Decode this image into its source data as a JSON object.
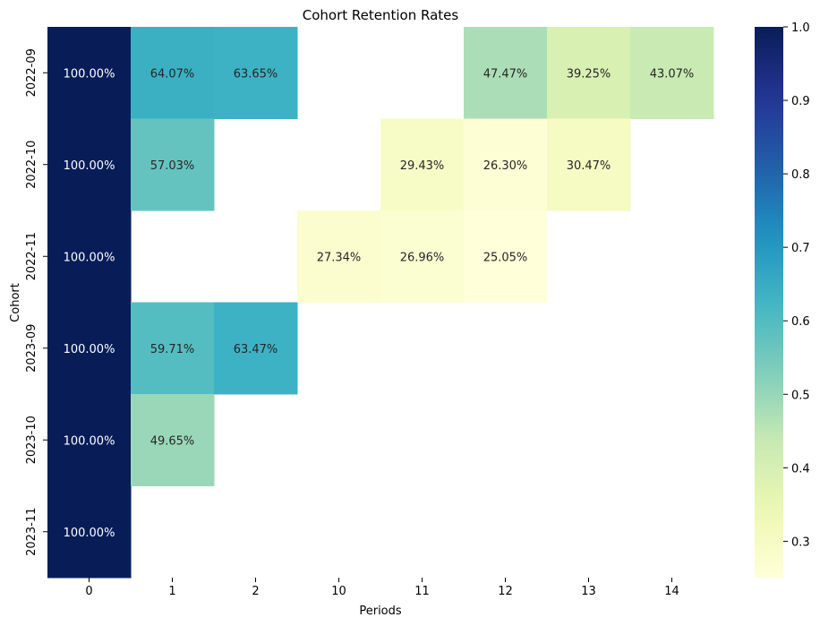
{
  "chart_data": {
    "type": "heatmap",
    "title": "Cohort Retention Rates",
    "xlabel": "Periods",
    "ylabel": "Cohort",
    "x_categories": [
      "0",
      "1",
      "2",
      "10",
      "11",
      "12",
      "13",
      "14"
    ],
    "y_categories": [
      "2022-09",
      "2022-10",
      "2022-11",
      "2023-09",
      "2023-10",
      "2023-11"
    ],
    "values": [
      [
        1.0,
        0.6407,
        0.6365,
        null,
        null,
        0.4747,
        0.3925,
        0.4307
      ],
      [
        1.0,
        0.5703,
        null,
        null,
        0.2943,
        0.263,
        0.3047,
        null
      ],
      [
        1.0,
        null,
        null,
        0.2734,
        0.2696,
        0.2505,
        null,
        null
      ],
      [
        1.0,
        0.5971,
        0.6347,
        null,
        null,
        null,
        null,
        null
      ],
      [
        1.0,
        0.4965,
        null,
        null,
        null,
        null,
        null,
        null
      ],
      [
        1.0,
        null,
        null,
        null,
        null,
        null,
        null,
        null
      ]
    ],
    "cell_labels": [
      [
        "100.00%",
        "64.07%",
        "63.65%",
        "",
        "",
        "47.47%",
        "39.25%",
        "43.07%"
      ],
      [
        "100.00%",
        "57.03%",
        "",
        "",
        "29.43%",
        "26.30%",
        "30.47%",
        ""
      ],
      [
        "100.00%",
        "",
        "",
        "27.34%",
        "26.96%",
        "25.05%",
        "",
        ""
      ],
      [
        "100.00%",
        "59.71%",
        "63.47%",
        "",
        "",
        "",
        "",
        ""
      ],
      [
        "100.00%",
        "49.65%",
        "",
        "",
        "",
        "",
        "",
        ""
      ],
      [
        "100.00%",
        "",
        "",
        "",
        "",
        "",
        "",
        ""
      ]
    ],
    "colorbar": {
      "colormap": "YlGnBu",
      "vmin": 0.2505,
      "vmax": 1.0,
      "ticks": [
        "0.3",
        "0.4",
        "0.5",
        "0.6",
        "0.7",
        "0.8",
        "0.9",
        "1.0"
      ]
    }
  }
}
